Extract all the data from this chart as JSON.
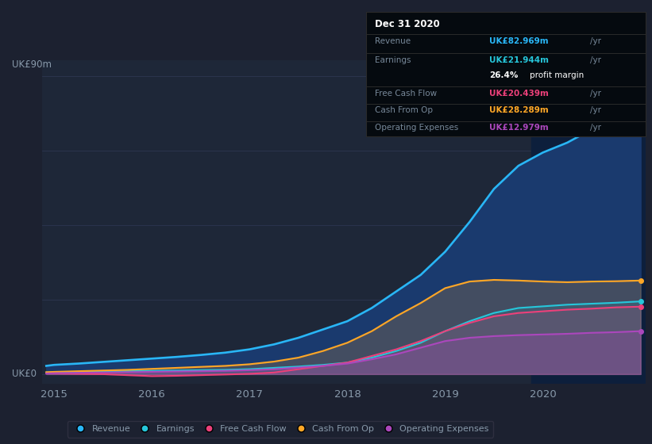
{
  "bg_color": "#1c2130",
  "plot_bg_color": "#1e2738",
  "grid_color": "#2d3650",
  "text_color": "#8899aa",
  "white": "#ffffff",
  "gray": "#778899",
  "years": [
    2014.92,
    2015.0,
    2015.25,
    2015.5,
    2015.75,
    2016.0,
    2016.25,
    2016.5,
    2016.75,
    2017.0,
    2017.25,
    2017.5,
    2017.75,
    2018.0,
    2018.25,
    2018.5,
    2018.75,
    2019.0,
    2019.25,
    2019.5,
    2019.75,
    2020.0,
    2020.25,
    2020.5,
    2020.75,
    2021.0
  ],
  "revenue": [
    2.5,
    2.8,
    3.2,
    3.7,
    4.2,
    4.7,
    5.2,
    5.8,
    6.5,
    7.5,
    9.0,
    11.0,
    13.5,
    16.0,
    20.0,
    25.0,
    30.0,
    37.0,
    46.0,
    56.0,
    63.0,
    67.0,
    70.0,
    74.0,
    79.0,
    83.0
  ],
  "earnings": [
    0.5,
    0.6,
    0.7,
    0.8,
    0.9,
    1.0,
    1.1,
    1.2,
    1.3,
    1.5,
    1.9,
    2.3,
    2.8,
    3.5,
    5.0,
    7.0,
    9.5,
    13.0,
    16.0,
    18.5,
    20.0,
    20.5,
    21.0,
    21.3,
    21.6,
    22.0
  ],
  "free_cash_flow": [
    0.2,
    0.2,
    0.1,
    0.0,
    -0.3,
    -0.6,
    -0.5,
    -0.3,
    -0.1,
    0.1,
    0.5,
    1.5,
    2.5,
    3.5,
    5.5,
    7.5,
    10.0,
    13.0,
    15.5,
    17.5,
    18.5,
    19.0,
    19.5,
    19.8,
    20.2,
    20.4
  ],
  "cash_from_op": [
    0.6,
    0.7,
    0.9,
    1.1,
    1.3,
    1.6,
    1.9,
    2.2,
    2.5,
    3.0,
    3.8,
    5.0,
    7.0,
    9.5,
    13.0,
    17.5,
    21.5,
    26.0,
    28.0,
    28.5,
    28.3,
    28.0,
    27.8,
    28.0,
    28.1,
    28.3
  ],
  "op_expenses": [
    0.2,
    0.3,
    0.4,
    0.5,
    0.6,
    0.7,
    0.8,
    0.9,
    1.0,
    1.2,
    1.5,
    2.0,
    2.5,
    3.2,
    4.5,
    6.0,
    8.0,
    10.0,
    11.0,
    11.5,
    11.8,
    12.0,
    12.2,
    12.5,
    12.7,
    13.0
  ],
  "revenue_color": "#29b6f6",
  "earnings_color": "#26c6da",
  "free_cash_flow_color": "#ec407a",
  "cash_from_op_color": "#ffa726",
  "op_expenses_color": "#ab47bc",
  "revenue_fill_color": "#1a3a6e",
  "highlight_x_start": 2019.88,
  "highlight_x_end": 2021.05,
  "highlight_color": "#0d1f3c",
  "xlim": [
    2014.88,
    2021.05
  ],
  "ylim": [
    -3,
    95
  ],
  "xticks": [
    2015,
    2016,
    2017,
    2018,
    2019,
    2020
  ],
  "grid_yvals": [
    0,
    22.5,
    45,
    67.5,
    90
  ],
  "ylabel_top": "UK£90m",
  "ylabel_bottom": "UK£0",
  "legend_labels": [
    "Revenue",
    "Earnings",
    "Free Cash Flow",
    "Cash From Op",
    "Operating Expenses"
  ],
  "legend_colors": [
    "#29b6f6",
    "#26c6da",
    "#ec407a",
    "#ffa726",
    "#ab47bc"
  ],
  "tooltip_title": "Dec 31 2020",
  "tooltip_rows": [
    {
      "label": "Revenue",
      "value": "UK£82.969m",
      "unit": "/yr",
      "color": "#29b6f6",
      "divider_below": false
    },
    {
      "label": "Earnings",
      "value": "UK£21.944m",
      "unit": "/yr",
      "color": "#26c6da",
      "divider_below": false
    },
    {
      "label": "",
      "value": "26.4%",
      "unit": " profit margin",
      "color": "#ffffff",
      "divider_below": true
    },
    {
      "label": "Free Cash Flow",
      "value": "UK£20.439m",
      "unit": "/yr",
      "color": "#ec407a",
      "divider_below": false
    },
    {
      "label": "Cash From Op",
      "value": "UK£28.289m",
      "unit": "/yr",
      "color": "#ffa726",
      "divider_below": false
    },
    {
      "label": "Operating Expenses",
      "value": "UK£12.979m",
      "unit": "/yr",
      "color": "#ab47bc",
      "divider_below": false
    }
  ]
}
